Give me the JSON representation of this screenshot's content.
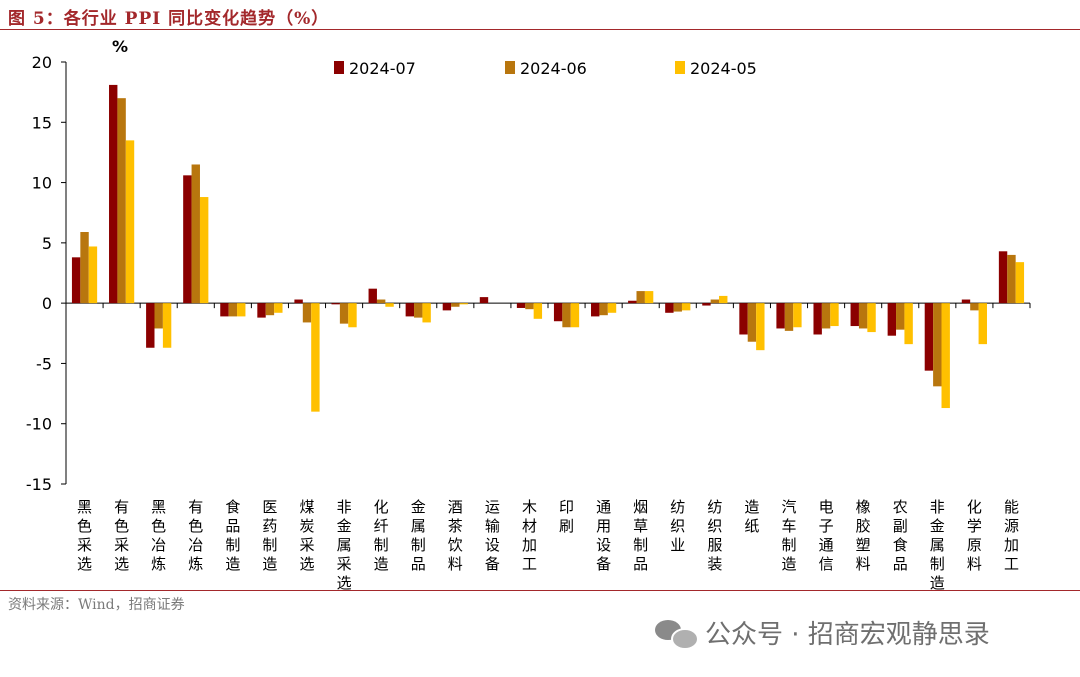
{
  "header": {
    "title": "图 5：各行业 PPI 同比变化趋势（%）"
  },
  "footer": {
    "source": "资料来源：Wind，招商证券"
  },
  "watermark": {
    "text": "公众号 · 招商宏观静思录",
    "icon": "wechat-icon"
  },
  "colors": {
    "accent": "#a3282b",
    "s1": "#8b0000",
    "s2": "#b8760e",
    "s3": "#ffc000"
  },
  "chart_data": {
    "type": "bar",
    "unit_label": "%",
    "ylim": [
      -15,
      20
    ],
    "yticks": [
      20,
      15,
      10,
      5,
      0,
      -5,
      -10,
      -15
    ],
    "legend_position": "top",
    "categories": [
      "黑色采选",
      "有色采选",
      "黑色冶炼",
      "有色冶炼",
      "食品制造",
      "医药制造",
      "煤炭采选",
      "非金属采选",
      "化纤制造",
      "金属制品",
      "酒茶饮料",
      "运输设备",
      "木材加工",
      "印刷",
      "通用设备",
      "烟草制品",
      "纺织业",
      "纺织服装",
      "造纸",
      "汽车制造",
      "电子通信",
      "橡胶塑料",
      "农副食品",
      "非金属制造",
      "化学原料",
      "能源加工"
    ],
    "series": [
      {
        "name": "2024-07",
        "values": [
          3.8,
          18.1,
          -3.7,
          10.6,
          -1.1,
          -1.2,
          0.3,
          -0.1,
          1.2,
          -1.1,
          -0.6,
          0.5,
          -0.4,
          -1.5,
          -1.1,
          0.2,
          -0.8,
          -0.2,
          -2.6,
          -2.1,
          -2.6,
          -1.9,
          -2.7,
          -5.6,
          0.3,
          4.3
        ]
      },
      {
        "name": "2024-06",
        "values": [
          5.9,
          17.0,
          -2.1,
          11.5,
          -1.1,
          -1.0,
          -1.6,
          -1.7,
          0.3,
          -1.2,
          -0.3,
          0.0,
          -0.5,
          -2.0,
          -1.0,
          1.0,
          -0.7,
          0.3,
          -3.2,
          -2.3,
          -2.1,
          -2.1,
          -2.2,
          -6.9,
          -0.6,
          4.0
        ]
      },
      {
        "name": "2024-05",
        "values": [
          4.7,
          13.5,
          -3.7,
          8.8,
          -1.1,
          -0.8,
          -9.0,
          -2.0,
          -0.3,
          -1.6,
          -0.1,
          0.0,
          -1.3,
          -2.0,
          -0.8,
          1.0,
          -0.6,
          0.6,
          -3.9,
          -2.0,
          -1.9,
          -2.4,
          -3.4,
          -8.7,
          -3.4,
          3.4
        ]
      }
    ]
  }
}
